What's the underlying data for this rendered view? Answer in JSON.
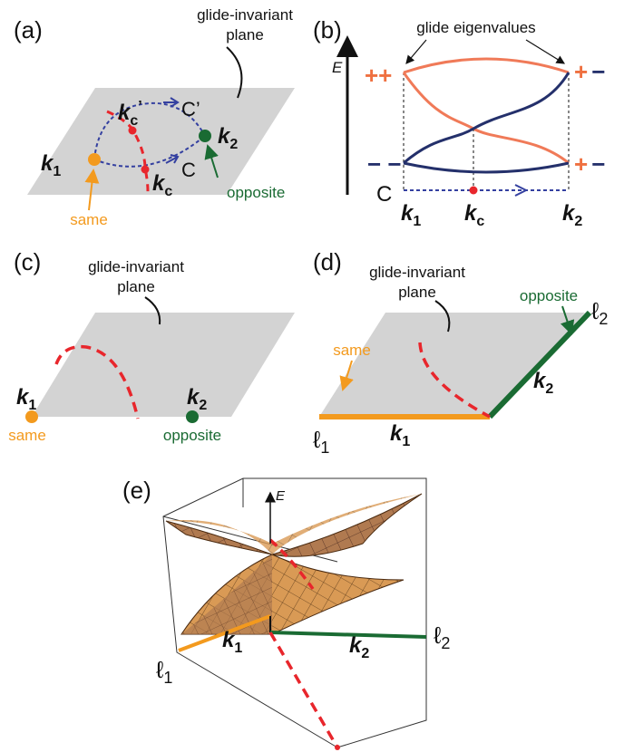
{
  "a": {
    "label": "(a)",
    "plane": [
      "glide-invariant",
      "plane"
    ],
    "k1": [
      "k",
      "1"
    ],
    "k2": [
      "k",
      "2"
    ],
    "kc": [
      "k",
      "c"
    ],
    "kc_prime": [
      "k",
      "c",
      "’"
    ],
    "c": "C",
    "c_prime": "C’",
    "same": "same",
    "opposite": "opposite"
  },
  "b": {
    "label": "(b)",
    "energy": "E",
    "eigen_title": "glide eigenvalues",
    "left_top": "++",
    "right_top": [
      "+",
      "−"
    ],
    "left_bottom": "− −",
    "right_bottom": [
      "+",
      "−"
    ],
    "path": "C",
    "k1": [
      "k",
      "1"
    ],
    "kc": [
      "k",
      "c"
    ],
    "k2": [
      "k",
      "2"
    ]
  },
  "c": {
    "label": "(c)",
    "plane": [
      "glide-invariant",
      "plane"
    ],
    "k1": [
      "k",
      "1"
    ],
    "k2": [
      "k",
      "2"
    ],
    "same": "same",
    "opposite": "opposite"
  },
  "d": {
    "label": "(d)",
    "plane": [
      "glide-invariant",
      "plane"
    ],
    "same": "same",
    "opposite": "opposite",
    "k1": [
      "k",
      "1"
    ],
    "k2": [
      "k",
      "2"
    ],
    "l1": [
      "ℓ",
      "1"
    ],
    "l2": [
      "ℓ",
      "2"
    ]
  },
  "e": {
    "label": "(e)",
    "energy": "E",
    "k1": [
      "k",
      "1"
    ],
    "k2": [
      "k",
      "2"
    ],
    "l1": [
      "ℓ",
      "1"
    ],
    "l2": [
      "ℓ",
      "2"
    ]
  }
}
